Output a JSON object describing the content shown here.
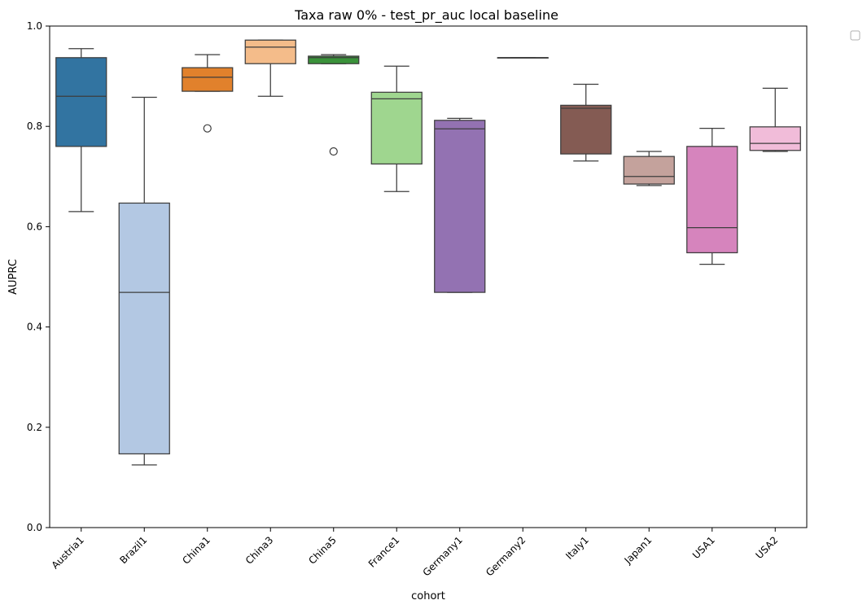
{
  "chart_data": {
    "type": "box",
    "title": "Taxa raw 0% - test_pr_auc local baseline",
    "xlabel": "cohort",
    "ylabel": "AUPRC",
    "ylim": [
      0,
      1
    ],
    "yticks": [
      "0.0",
      "0.2",
      "0.4",
      "0.6",
      "0.8",
      "1.0"
    ],
    "legend": "top-right (empty)",
    "categories": [
      "Austria1",
      "Brazil1",
      "China1",
      "China3",
      "China5",
      "France1",
      "Germany1",
      "Germany2",
      "Italy1",
      "Japan1",
      "USA1",
      "USA2"
    ],
    "boxes": [
      {
        "name": "Austria1",
        "color": "#3274a1",
        "whisker_low": 0.63,
        "q1": 0.76,
        "median": 0.86,
        "q3": 0.937,
        "whisker_high": 0.955,
        "outliers": []
      },
      {
        "name": "Brazil1",
        "color": "#b3c8e3",
        "whisker_low": 0.125,
        "q1": 0.147,
        "median": 0.469,
        "q3": 0.647,
        "whisker_high": 0.858,
        "outliers": []
      },
      {
        "name": "China1",
        "color": "#e1812c",
        "whisker_low": 0.87,
        "q1": 0.87,
        "median": 0.898,
        "q3": 0.917,
        "whisker_high": 0.943,
        "outliers": [
          0.796
        ]
      },
      {
        "name": "China3",
        "color": "#f4bc8a",
        "whisker_low": 0.86,
        "q1": 0.925,
        "median": 0.958,
        "q3": 0.972,
        "whisker_high": 0.972,
        "outliers": []
      },
      {
        "name": "China5",
        "color": "#3a923a",
        "whisker_low": 0.925,
        "q1": 0.925,
        "median": 0.937,
        "q3": 0.94,
        "whisker_high": 0.943,
        "outliers": [
          0.75
        ]
      },
      {
        "name": "France1",
        "color": "#9fd68f",
        "whisker_low": 0.67,
        "q1": 0.725,
        "median": 0.855,
        "q3": 0.868,
        "whisker_high": 0.92,
        "outliers": []
      },
      {
        "name": "Germany1",
        "color": "#9372b2",
        "whisker_low": 0.469,
        "q1": 0.469,
        "median": 0.795,
        "q3": 0.812,
        "whisker_high": 0.816,
        "outliers": []
      },
      {
        "name": "Germany2",
        "color": "#c4b1d6",
        "whisker_low": 0.937,
        "q1": 0.937,
        "median": 0.937,
        "q3": 0.937,
        "whisker_high": 0.937,
        "outliers": []
      },
      {
        "name": "Italy1",
        "color": "#845b53",
        "whisker_low": 0.731,
        "q1": 0.745,
        "median": 0.836,
        "q3": 0.842,
        "whisker_high": 0.884,
        "outliers": []
      },
      {
        "name": "Japan1",
        "color": "#c4a29c",
        "whisker_low": 0.682,
        "q1": 0.685,
        "median": 0.7,
        "q3": 0.74,
        "whisker_high": 0.75,
        "outliers": []
      },
      {
        "name": "USA1",
        "color": "#d684bd",
        "whisker_low": 0.525,
        "q1": 0.548,
        "median": 0.598,
        "q3": 0.76,
        "whisker_high": 0.796,
        "outliers": []
      },
      {
        "name": "USA2",
        "color": "#f1bcd9",
        "whisker_low": 0.75,
        "q1": 0.752,
        "median": 0.766,
        "q3": 0.799,
        "whisker_high": 0.876,
        "outliers": []
      }
    ]
  }
}
